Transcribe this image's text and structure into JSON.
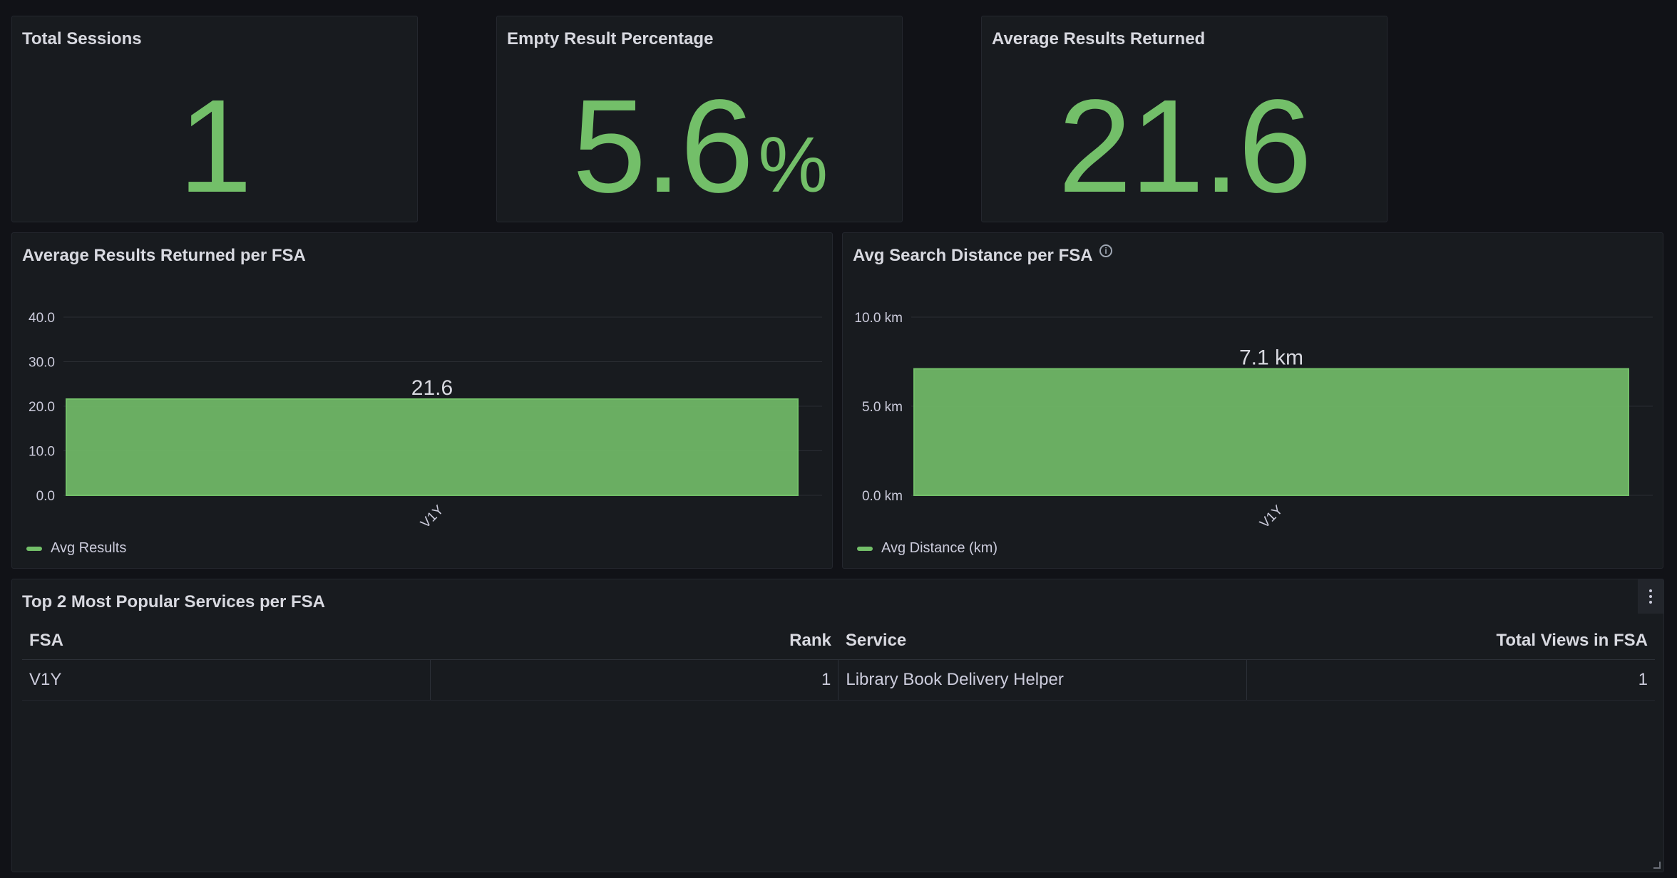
{
  "stats": [
    {
      "title": "Total Sessions",
      "value": "1",
      "unit": ""
    },
    {
      "title": "Empty Result Percentage",
      "value": "5.6",
      "unit": "%"
    },
    {
      "title": "Average Results Returned",
      "value": "21.6",
      "unit": ""
    }
  ],
  "colors": {
    "accent": "#73bf69",
    "bar": "#73bf69",
    "panel": "#181b1f",
    "background": "#111217"
  },
  "chart_data": [
    {
      "type": "bar",
      "title": "Average Results Returned per FSA",
      "categories": [
        "V1Y"
      ],
      "series": [
        {
          "name": "Avg Results",
          "values": [
            21.6
          ]
        }
      ],
      "data_labels": [
        "21.6"
      ],
      "yticks": [
        "0.0",
        "10.0",
        "20.0",
        "30.0",
        "40.0"
      ],
      "ylim": [
        0,
        40
      ],
      "legend": "bottom-left"
    },
    {
      "type": "bar",
      "title": "Avg Search Distance per FSA",
      "categories": [
        "V1Y"
      ],
      "series": [
        {
          "name": "Avg Distance (km)",
          "values": [
            7.1
          ]
        }
      ],
      "data_labels": [
        "7.1 km"
      ],
      "yticks": [
        "0.0 km",
        "5.0 km",
        "10.0 km"
      ],
      "ylim": [
        0,
        10
      ],
      "legend": "bottom-left",
      "info_icon": "info-icon"
    }
  ],
  "table": {
    "title": "Top 2 Most Popular Services per FSA",
    "columns": [
      "FSA",
      "Rank",
      "Service",
      "Total Views in FSA"
    ],
    "rows": [
      [
        "V1Y",
        "1",
        "Library Book Delivery Helper",
        "1"
      ]
    ]
  }
}
